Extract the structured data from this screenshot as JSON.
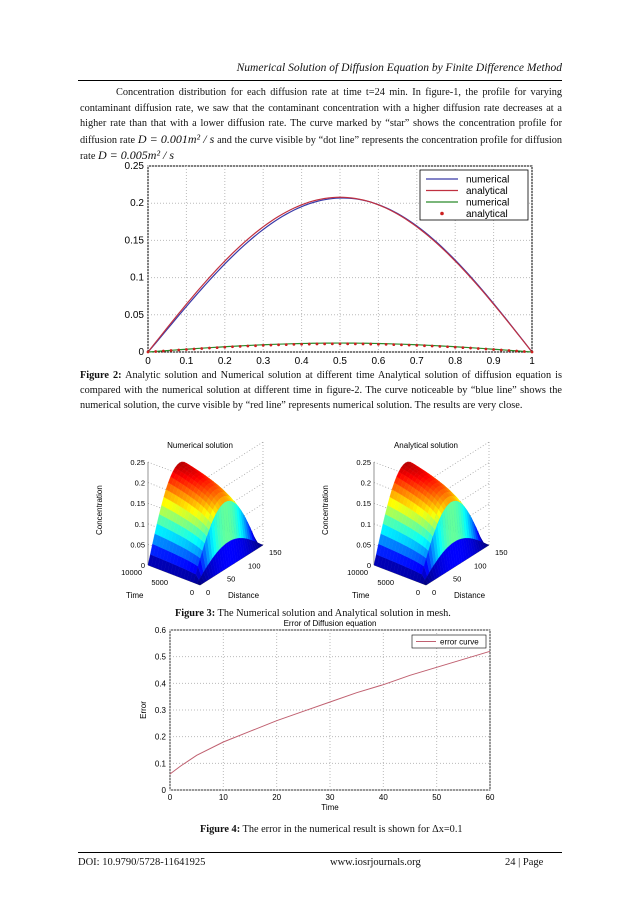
{
  "header": {
    "running_title": "Numerical Solution of Diffusion Equation by Finite Difference Method"
  },
  "body": {
    "para1": "Concentration distribution for each diffusion rate at time t=24 min. In figure-1, the profile for varying contaminant diffusion rate, we saw that the contaminant concentration with a higher diffusion rate decreases at a higher rate than that with a lower diffusion rate. The curve marked by “star” shows the concentration profile for diffusion rate",
    "eq1": "D = 0.001m² / s",
    "mid": "and the curve visible by “dot line” represents the concentration profile for diffusion rate",
    "eq2": "D = 0.005m² / s",
    "para2": "Analytic solution and Numerical solution at different time Analytical solution of diffusion equation is compared with the numerical solution at different time in figure-2. The curve noticeable by “blue line” shows the numerical solution, the curve visible by “red line” represents numerical solution. The results are very close."
  },
  "captions": {
    "fig2_label": "Figure 2:",
    "fig3_label": "Figure 3:",
    "fig3_text": "The Numerical solution and Analytical solution in mesh.",
    "fig4_label": "Figure 4:",
    "fig4_text": "The error in the numerical result is shown for Δx=0.1"
  },
  "footer": {
    "doi": "DOI: 10.9790/5728-11641925",
    "site": "www.iosrjournals.org",
    "page": "24 | Page"
  },
  "chart_data": [
    {
      "type": "line",
      "title": "",
      "xlabel": "",
      "ylabel": "",
      "xlim": [
        0,
        1
      ],
      "ylim": [
        0,
        0.25
      ],
      "xticks": [
        "0",
        "0.1",
        "0.2",
        "0.3",
        "0.4",
        "0.5",
        "0.6",
        "0.7",
        "0.8",
        "0.9",
        "1"
      ],
      "yticks": [
        "0",
        "0.05",
        "0.1",
        "0.15",
        "0.2",
        "0.25"
      ],
      "grid": true,
      "legend_position": "top-right",
      "series": [
        {
          "name": "numerical",
          "color": "#3a3aa8",
          "style": "solid",
          "peak": 0.207,
          "x_peak": 0.5
        },
        {
          "name": "analytical",
          "color": "#c03040",
          "style": "solid",
          "peak": 0.208,
          "x_peak": 0.5
        },
        {
          "name": "numerical",
          "color": "#2a8a2a",
          "style": "solid",
          "peak": 0.012,
          "x_peak": 0.5
        },
        {
          "name": "analytical",
          "color": "#cc2020",
          "style": "dots",
          "peak": 0.011,
          "x_peak": 0.5
        }
      ]
    },
    {
      "type": "surface",
      "panels": [
        {
          "title": "Numerical solution"
        },
        {
          "title": "Analytical solution"
        }
      ],
      "zlabel": "Concentration",
      "xlabel": "Time",
      "ylabel": "Distance",
      "zticks": [
        "0",
        "0.05",
        "0.1",
        "0.15",
        "0.2",
        "0.25"
      ],
      "time_ticks": [
        "10000",
        "5000",
        "0"
      ],
      "distance_ticks": [
        "0",
        "50",
        "100",
        "150"
      ],
      "zlim": [
        0,
        0.25
      ],
      "colormap": "jet"
    },
    {
      "type": "line",
      "title": "Error of Diffusion equation",
      "xlabel": "Time",
      "ylabel": "Error",
      "xlim": [
        0,
        60
      ],
      "ylim": [
        0,
        0.6
      ],
      "xticks": [
        "0",
        "10",
        "20",
        "30",
        "40",
        "50",
        "60"
      ],
      "yticks": [
        "0",
        "0.1",
        "0.2",
        "0.3",
        "0.4",
        "0.5",
        "0.6"
      ],
      "grid": true,
      "legend_position": "top-right",
      "series": [
        {
          "name": "error curve",
          "color": "#c06070",
          "x": [
            0,
            1,
            2,
            5,
            10,
            15,
            20,
            25,
            30,
            35,
            40,
            45,
            50,
            55,
            60
          ],
          "y": [
            0.06,
            0.075,
            0.09,
            0.13,
            0.18,
            0.22,
            0.26,
            0.295,
            0.33,
            0.365,
            0.395,
            0.43,
            0.46,
            0.49,
            0.52
          ]
        }
      ]
    }
  ]
}
